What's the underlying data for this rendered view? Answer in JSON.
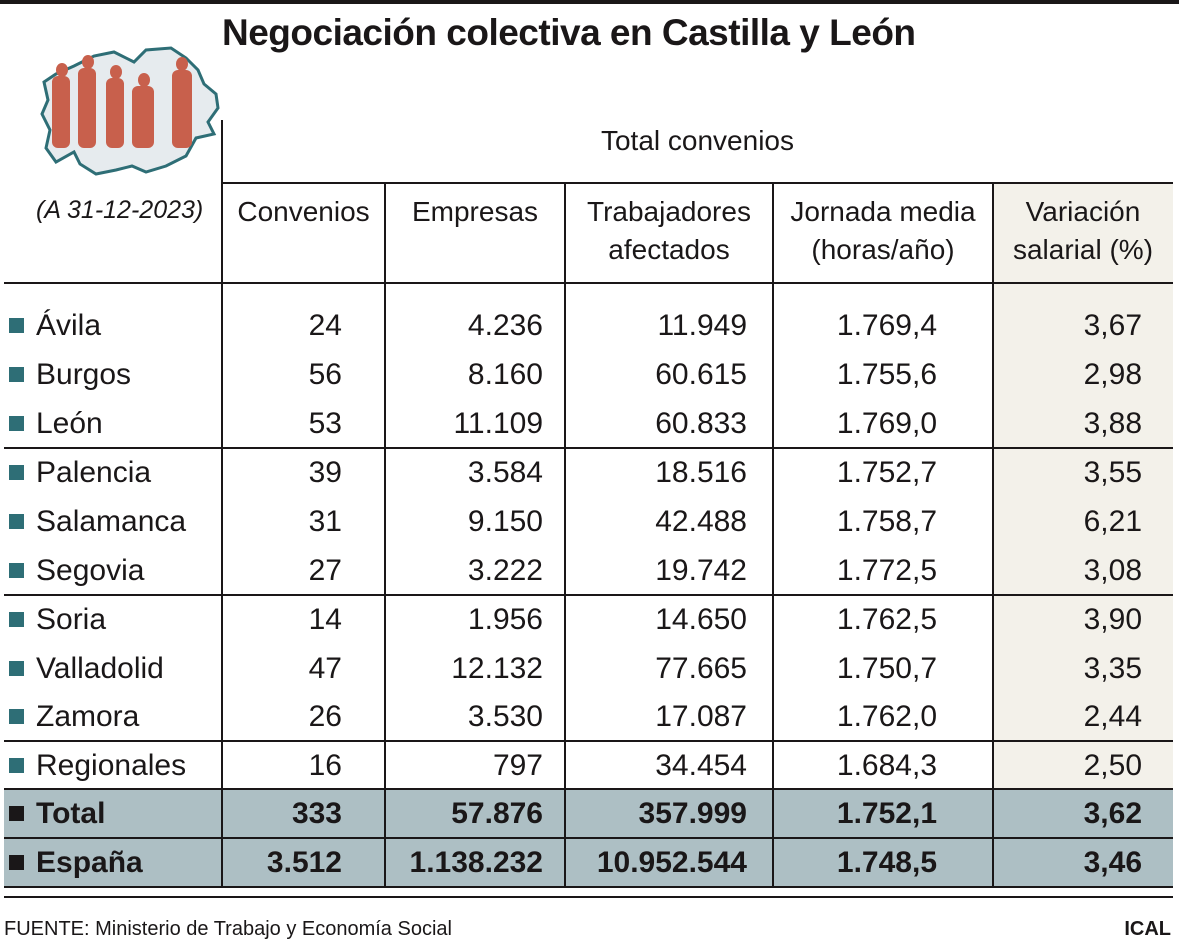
{
  "title": "Negociación colectiva en Castilla y León",
  "date_note": "(A 31-12-2023)",
  "group_header": "Total convenios",
  "colors": {
    "accent_bullet": "#2e6e76",
    "total_band": "#adbfc4",
    "highlight_column": "#f3f1ea",
    "figures": "#c8604c"
  },
  "logo": "map-of-castilla-y-leon-with-people-silhouettes",
  "source": "FUENTE: Ministerio de Trabajo y Economía Social",
  "brand": "ICAL",
  "chart_data": {
    "type": "table",
    "title": "Negociación colectiva en Castilla y León",
    "columns": [
      "Convenios",
      "Empresas",
      "Trabajadores afectados",
      "Jornada media (horas/año)",
      "Variación salarial (%)"
    ],
    "header_lines": [
      [
        "Convenios",
        ""
      ],
      [
        "Empresas",
        ""
      ],
      [
        "Trabajadores",
        "afectados"
      ],
      [
        "Jornada media",
        "(horas/año)"
      ],
      [
        "Variación",
        "salarial (%)"
      ]
    ],
    "rows": [
      {
        "label": "Ávila",
        "values": [
          "24",
          "4.236",
          "11.949",
          "1.769,4",
          "3,67"
        ]
      },
      {
        "label": "Burgos",
        "values": [
          "56",
          "8.160",
          "60.615",
          "1.755,6",
          "2,98"
        ]
      },
      {
        "label": "León",
        "values": [
          "53",
          "11.109",
          "60.833",
          "1.769,0",
          "3,88"
        ]
      },
      {
        "label": "Palencia",
        "values": [
          "39",
          "3.584",
          "18.516",
          "1.752,7",
          "3,55"
        ]
      },
      {
        "label": "Salamanca",
        "values": [
          "31",
          "9.150",
          "42.488",
          "1.758,7",
          "6,21"
        ]
      },
      {
        "label": "Segovia",
        "values": [
          "27",
          "3.222",
          "19.742",
          "1.772,5",
          "3,08"
        ]
      },
      {
        "label": "Soria",
        "values": [
          "14",
          "1.956",
          "14.650",
          "1.762,5",
          "3,90"
        ]
      },
      {
        "label": "Valladolid",
        "values": [
          "47",
          "12.132",
          "77.665",
          "1.750,7",
          "3,35"
        ]
      },
      {
        "label": "Zamora",
        "values": [
          "26",
          "3.530",
          "17.087",
          "1.762,0",
          "2,44"
        ]
      },
      {
        "label": "Regionales",
        "values": [
          "16",
          "797",
          "34.454",
          "1.684,3",
          "2,50"
        ]
      },
      {
        "label": "Total",
        "values": [
          "333",
          "57.876",
          "357.999",
          "1.752,1",
          "3,62"
        ],
        "bold": true
      },
      {
        "label": "España",
        "values": [
          "3.512",
          "1.138.232",
          "10.952.544",
          "1.748,5",
          "3,46"
        ],
        "bold": true
      }
    ]
  }
}
